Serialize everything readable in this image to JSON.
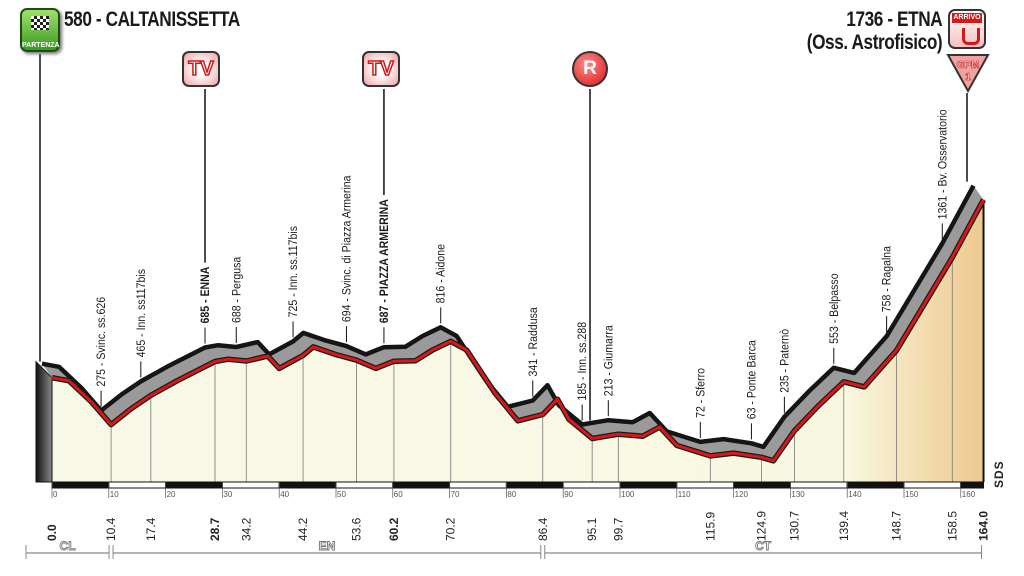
{
  "start": {
    "elevation_name": "580 - CALTANISSETTA",
    "badge": "PARTENZA"
  },
  "finish": {
    "line1": "1736 - ETNA",
    "line2": "(Oss. Astrofisico)",
    "badge": "ARRIVO",
    "gpm_label": "GPM",
    "gpm_category": "1"
  },
  "markers": {
    "tv": "TV",
    "sprint": "R"
  },
  "signature": "SDS",
  "colors": {
    "profile_line": "#d81818",
    "band": "#9a9a9a",
    "fill": "#f8f8e6",
    "finish_fill": "#f0c890"
  },
  "provinces": [
    {
      "code": "CL",
      "from_km": 0,
      "to_km": 10.4
    },
    {
      "code": "EN",
      "from_km": 10.4,
      "to_km": 86.4
    },
    {
      "code": "CT",
      "from_km": 86.4,
      "to_km": 164.0
    }
  ],
  "chart_data": {
    "type": "area",
    "xlabel": "",
    "ylabel": "",
    "xlim": [
      0,
      164
    ],
    "x_ticks": [
      0,
      10,
      20,
      30,
      40,
      50,
      60,
      70,
      80,
      90,
      100,
      110,
      120,
      130,
      140,
      150,
      160
    ],
    "profile": [
      [
        0,
        580
      ],
      [
        3,
        560
      ],
      [
        7,
        420
      ],
      [
        10.4,
        275
      ],
      [
        14,
        380
      ],
      [
        17.4,
        465
      ],
      [
        22,
        560
      ],
      [
        28.7,
        685
      ],
      [
        31,
        700
      ],
      [
        34.2,
        688
      ],
      [
        38,
        720
      ],
      [
        40,
        640
      ],
      [
        44.2,
        725
      ],
      [
        46,
        780
      ],
      [
        50,
        730
      ],
      [
        53.6,
        694
      ],
      [
        57,
        640
      ],
      [
        60.2,
        687
      ],
      [
        64,
        690
      ],
      [
        67,
        760
      ],
      [
        70.2,
        816
      ],
      [
        73,
        760
      ],
      [
        78,
        480
      ],
      [
        82,
        300
      ],
      [
        86.4,
        341
      ],
      [
        89,
        440
      ],
      [
        91,
        310
      ],
      [
        95.1,
        185
      ],
      [
        99.7,
        213
      ],
      [
        104,
        200
      ],
      [
        107,
        260
      ],
      [
        110,
        140
      ],
      [
        115.9,
        72
      ],
      [
        120,
        90
      ],
      [
        124.9,
        63
      ],
      [
        127,
        40
      ],
      [
        130.7,
        235
      ],
      [
        135,
        400
      ],
      [
        139.4,
        553
      ],
      [
        143,
        520
      ],
      [
        148.7,
        758
      ],
      [
        158.5,
        1361
      ],
      [
        164,
        1736
      ]
    ],
    "waypoints": [
      {
        "km": "0.0",
        "label": "",
        "bold": true,
        "x": 0
      },
      {
        "km": "10.4",
        "label": "275 - Svinc. ss.626",
        "x": 10.4
      },
      {
        "km": "17.4",
        "label": "465 - Inn. ss117bis",
        "x": 17.4
      },
      {
        "km": "28.7",
        "label": "685 - ENNA",
        "bold": true,
        "x": 28.7,
        "marker": "TV"
      },
      {
        "km": "34.2",
        "label": "688 - Pergusa",
        "x": 34.2
      },
      {
        "km": "44.2",
        "label": "725 - Inn. ss.117bis",
        "x": 44.2
      },
      {
        "km": "53.6",
        "label": "694 - Svinc. di Piazza Armerina",
        "x": 53.6
      },
      {
        "km": "60.2",
        "label": "687 - PIAZZA ARMERINA",
        "bold": true,
        "x": 60.2,
        "marker": "TV"
      },
      {
        "km": "70.2",
        "label": "816 - Aidone",
        "x": 70.2
      },
      {
        "km": "86.4",
        "label": "341 - Raddusa",
        "x": 86.4
      },
      {
        "km": "95.1",
        "label": "185 - Inn. ss.288",
        "x": 95.1,
        "marker": "R"
      },
      {
        "km": "99.7",
        "label": "213 - Giumarra",
        "x": 99.7
      },
      {
        "km": "115.9",
        "label": "72 - Sferro",
        "x": 115.9
      },
      {
        "km": "124.9",
        "label": "63 - Ponte Barca",
        "x": 124.9
      },
      {
        "km": "130.7",
        "label": "235 - Paternò",
        "x": 130.7
      },
      {
        "km": "139.4",
        "label": "553 - Belpasso",
        "x": 139.4
      },
      {
        "km": "148.7",
        "label": "758 - Ragalna",
        "x": 148.7
      },
      {
        "km": "158.5",
        "label": "1361 - Bv. Osservatorio",
        "x": 158.5
      },
      {
        "km": "164.0",
        "label": "",
        "bold": true,
        "x": 164
      }
    ]
  }
}
